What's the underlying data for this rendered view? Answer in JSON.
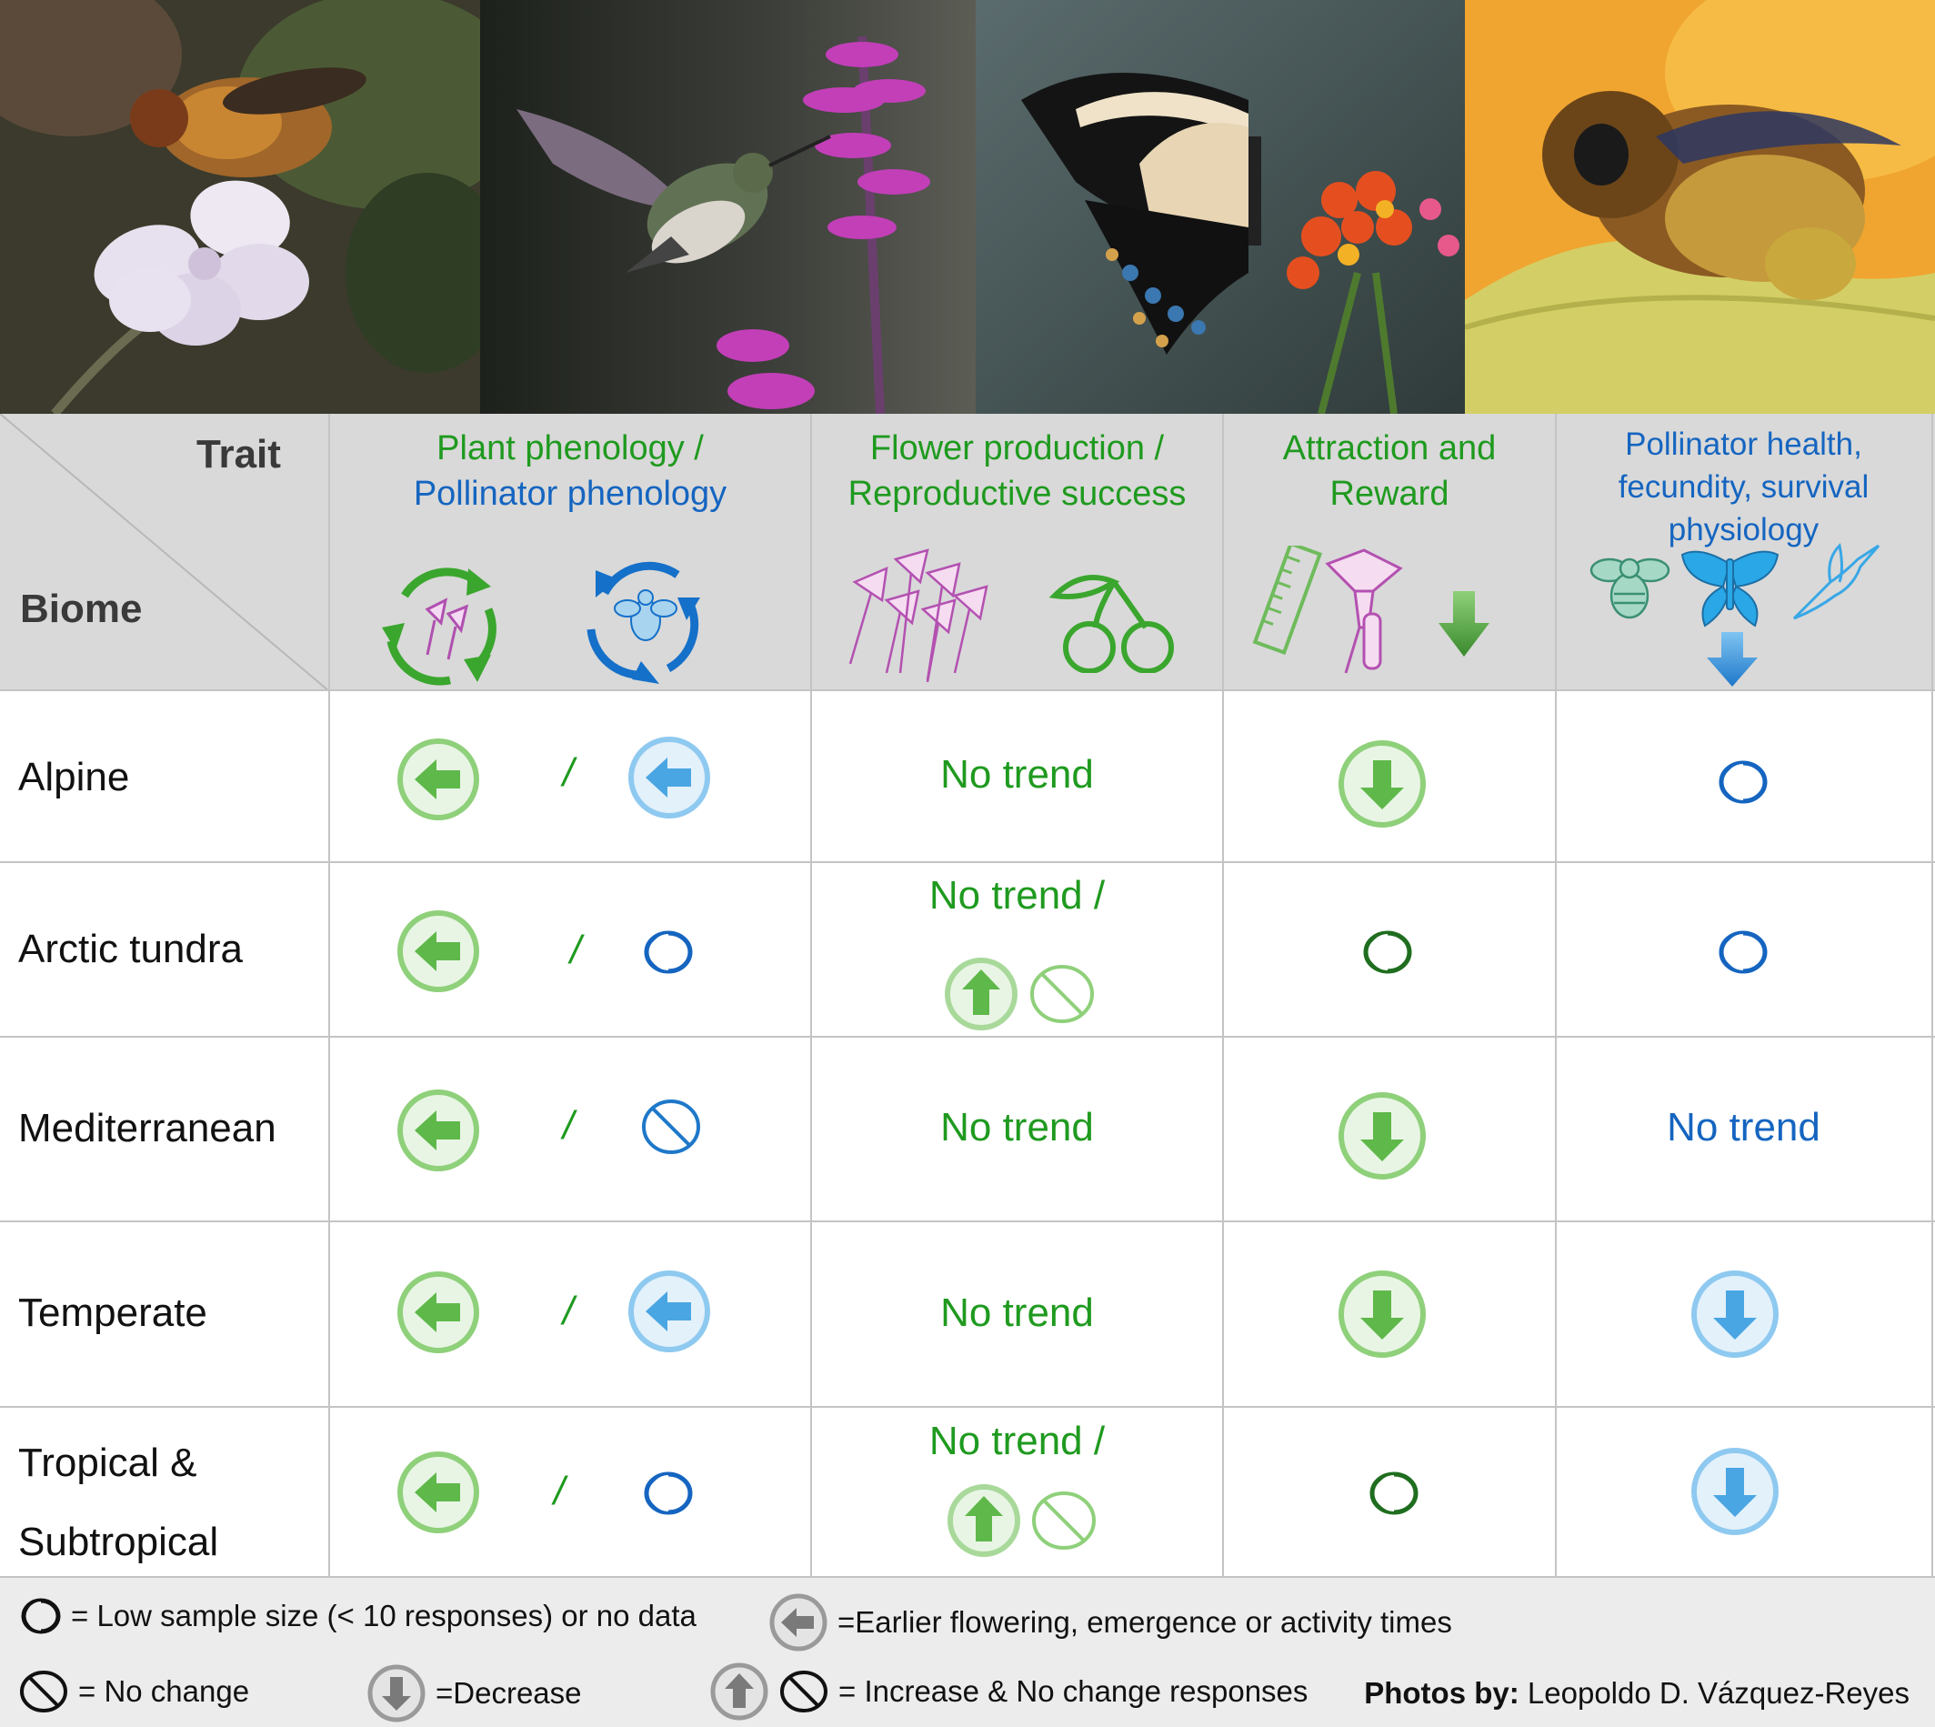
{
  "header": {
    "corner_trait": "Trait",
    "corner_biome": "Biome",
    "columns": [
      {
        "line1": "Plant phenology /",
        "line2": "Pollinator phenology",
        "line1_color": "green",
        "line2_color": "blue"
      },
      {
        "line1": "Flower production /",
        "line2": "Reproductive success",
        "line1_color": "green",
        "line2_color": "green"
      },
      {
        "line1": "Attraction and",
        "line2": "Reward",
        "line1_color": "green",
        "line2_color": "green"
      },
      {
        "line1": "Pollinator health,",
        "line2": "fecundity, survival",
        "line3": "physiology",
        "line1_color": "blue",
        "line2_color": "blue"
      }
    ]
  },
  "rows": [
    {
      "biome": "Alpine",
      "phenology": [
        "earlier-green",
        "/",
        "earlier-blue"
      ],
      "flower": "No trend",
      "attraction": "decrease-green",
      "health": "low-sample-blue"
    },
    {
      "biome": "Arctic tundra",
      "phenology": [
        "earlier-green",
        "/",
        "low-sample-blue"
      ],
      "flower": "No trend /",
      "flower_icons": [
        "increase-green",
        "no-change-green"
      ],
      "attraction": "low-sample-green",
      "health": "low-sample-blue"
    },
    {
      "biome": "Mediterranean",
      "phenology": [
        "earlier-green",
        "/",
        "no-change-blue"
      ],
      "flower": "No trend",
      "attraction": "decrease-green",
      "health_text": "No trend"
    },
    {
      "biome": "Temperate",
      "phenology": [
        "earlier-green",
        "/",
        "earlier-blue"
      ],
      "flower": "No trend",
      "attraction": "decrease-green",
      "health": "decrease-blue"
    },
    {
      "biome_line1": "Tropical &",
      "biome_line2": "Subtropical",
      "phenology": [
        "earlier-green",
        "/",
        "low-sample-blue"
      ],
      "flower": "No trend /",
      "flower_icons": [
        "increase-green",
        "no-change-green"
      ],
      "attraction": "low-sample-green",
      "health": "decrease-blue"
    }
  ],
  "slash": "/",
  "legend": {
    "low_sample": "= Low sample size (< 10 responses) or no data",
    "earlier": "=Earlier flowering, emergence or activity times",
    "no_change": "= No change",
    "decrease": "=Decrease",
    "increase_no_change": "= Increase & No change responses",
    "credit_label": "Photos by:",
    "credit_name": "Leopoldo D. Vázquez-Reyes"
  },
  "colors": {
    "green": "#1f9a1f",
    "blue": "#1565c0",
    "header_bg": "#d9d9d9",
    "legend_bg": "#ececec"
  },
  "icons": [
    "fly-on-flower-photo",
    "hummingbird-photo",
    "swallowtail-butterfly-photo",
    "bee-on-leaf-photo",
    "plant-cycle-icon",
    "pollinator-cycle-icon",
    "flowers-icon",
    "cherries-icon",
    "ruler-icon",
    "nectar-flower-icon",
    "down-arrow-icon",
    "bee-icon",
    "butterfly-icon",
    "hummingbird-icon"
  ]
}
